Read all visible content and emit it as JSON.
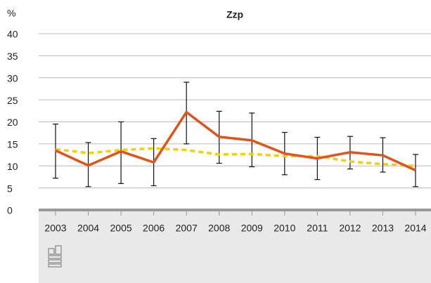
{
  "chart_data": {
    "type": "line",
    "title": "Zzp",
    "y_label": "%",
    "categories": [
      "2003",
      "2004",
      "2005",
      "2006",
      "2007",
      "2008",
      "2009",
      "2010",
      "2011",
      "2012",
      "2013",
      "2014"
    ],
    "series": [
      {
        "color": "#f5d000",
        "dashed": true,
        "values": [
          13.8,
          12.9,
          13.6,
          14.0,
          13.6,
          12.6,
          12.7,
          12.2,
          12.2,
          11.0,
          10.4,
          10.0
        ]
      },
      {
        "color": "#e0541b",
        "dashed": false,
        "values": [
          13.5,
          10.1,
          13.3,
          10.8,
          22.2,
          16.6,
          15.8,
          12.8,
          11.7,
          13.1,
          12.4,
          9.0
        ],
        "error_low": [
          7.2,
          5.3,
          6.0,
          5.5,
          15.0,
          10.6,
          9.8,
          8.0,
          6.9,
          9.3,
          8.6,
          5.3
        ],
        "error_high": [
          19.5,
          15.3,
          20.0,
          16.2,
          29.0,
          22.4,
          22.0,
          17.6,
          16.5,
          16.7,
          16.4,
          12.6
        ]
      }
    ],
    "ylim": [
      0,
      40
    ],
    "yticks": [
      0,
      5,
      10,
      15,
      20,
      25,
      30,
      35,
      40
    ],
    "grid": true
  }
}
